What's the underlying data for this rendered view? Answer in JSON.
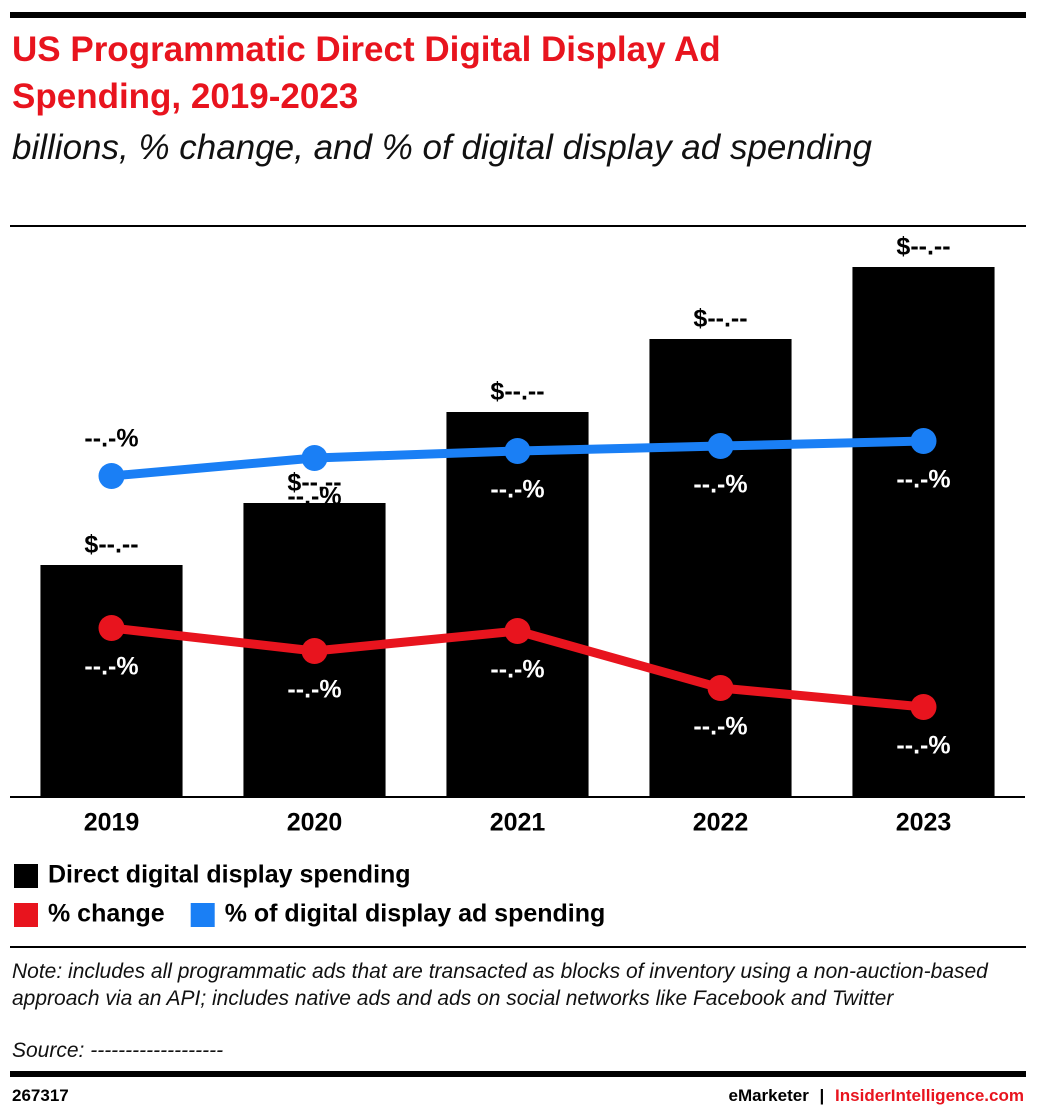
{
  "chart_data": {
    "type": "bar",
    "title": "US Programmatic Direct Digital Display Ad Spending, 2019-2023",
    "subtitle": "billions, % change, and % of digital display ad spending",
    "categories": [
      "2019",
      "2020",
      "2021",
      "2022",
      "2023"
    ],
    "ylim": [
      0,
      11.4
    ],
    "y2lim": [
      0,
      114
    ],
    "series": [
      {
        "name": "Direct digital display spending",
        "type": "bar",
        "color": "#000000",
        "values": [
          4.64,
          5.88,
          7.7,
          9.16,
          10.6
        ],
        "value_labels": [
          "$--.--",
          "$--.--",
          "$--.--",
          "$--.--",
          "$--.--"
        ]
      },
      {
        "name": "% change",
        "type": "line",
        "axis": "y2",
        "color": "#e8141e",
        "values": [
          33.8,
          29.2,
          33.2,
          21.8,
          18.0
        ],
        "value_labels": [
          "--.-%",
          "--.-%",
          "--.-%",
          "--.-%",
          "--.-%"
        ]
      },
      {
        "name": "% of digital display ad spending",
        "type": "line",
        "axis": "y2",
        "color": "#1a7ff5",
        "values": [
          64.2,
          67.8,
          69.2,
          70.2,
          71.2
        ],
        "value_labels": [
          "--.-%",
          "--.-%",
          "--.-%",
          "--.-%",
          "--.-%"
        ]
      }
    ],
    "note": "Note: includes all programmatic ads that are transacted as blocks of inventory using a non-auction-based approach via an API; includes native ads and ads on social networks like Facebook and Twitter",
    "source": "Source: -------------------",
    "footer": {
      "id": "267317",
      "brand": "eMarketer",
      "separator": "|",
      "site": "InsiderIntelligence.com"
    }
  }
}
